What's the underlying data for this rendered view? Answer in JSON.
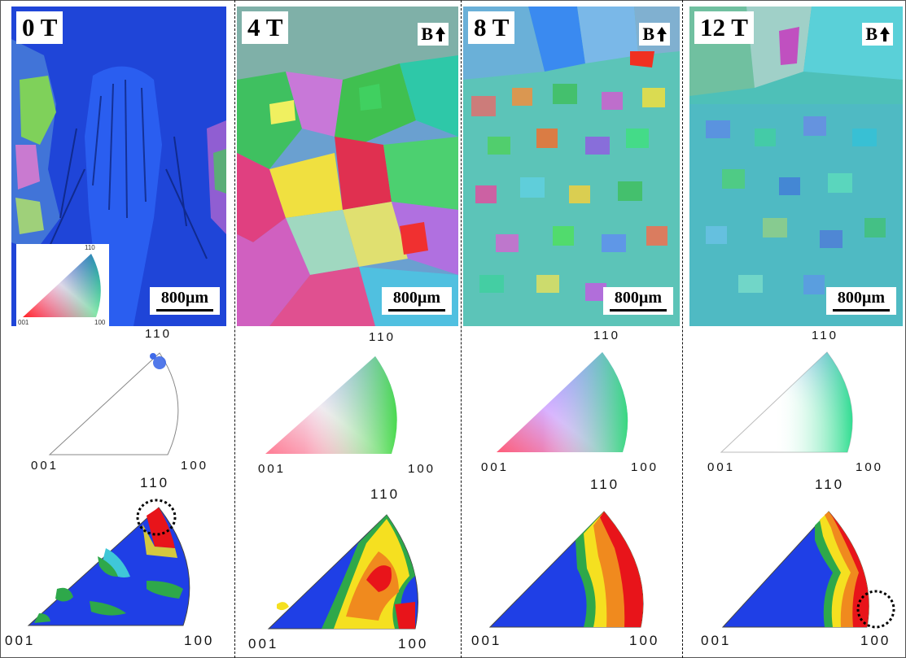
{
  "panels": [
    {
      "field": "0 T",
      "show_b": false,
      "scale": "800µm",
      "dominant": "#1d4fe0"
    },
    {
      "field": "4 T",
      "show_b": true,
      "b_label": "B",
      "scale": "800µm",
      "dominant": "mixed"
    },
    {
      "field": "8 T",
      "show_b": true,
      "b_label": "B",
      "scale": "800µm",
      "dominant": "mixed"
    },
    {
      "field": "12 T",
      "show_b": true,
      "b_label": "B",
      "scale": "800µm",
      "dominant": "#2fb8c8"
    }
  ],
  "ipf_labels": {
    "top": "110",
    "left": "001",
    "right": "100"
  },
  "legend": {
    "top": "110",
    "left": "001",
    "right": "100"
  },
  "colors": {
    "blue": "#1f3fe6",
    "green": "#2ea84a",
    "red": "#e8141a",
    "orange": "#f08a1e",
    "yellow": "#f5e020",
    "cyan": "#3fc7d8"
  }
}
